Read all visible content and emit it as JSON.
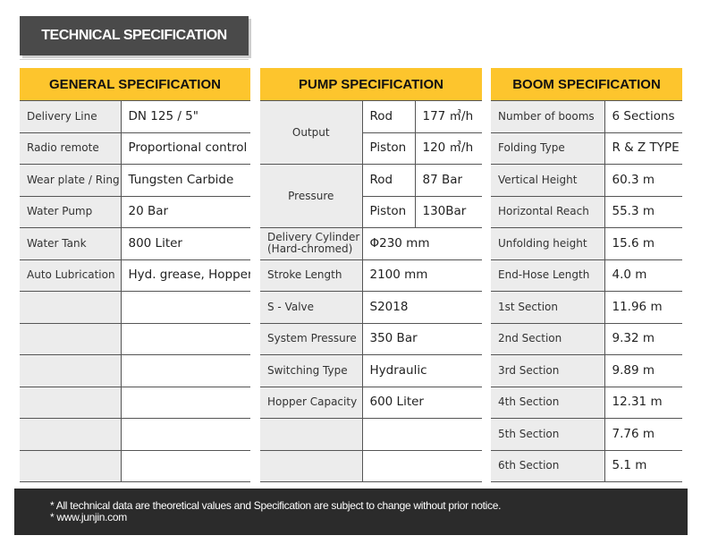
{
  "title": "TECHNICAL SPECIFICATION",
  "general": {
    "header": "GENERAL SPECIFICATION",
    "rows": [
      {
        "label": "Delivery Line",
        "value": "DN 125 / 5\""
      },
      {
        "label": "Radio remote",
        "value": "Proportional control"
      },
      {
        "label": "Wear plate / Ring",
        "value": "Tungsten Carbide"
      },
      {
        "label": "Water Pump",
        "value": "20 Bar"
      },
      {
        "label": "Water Tank",
        "value": "800 Liter"
      },
      {
        "label": "Auto Lubrication",
        "value": "Hyd. grease, Hopper"
      }
    ]
  },
  "pump": {
    "header": "PUMP SPECIFICATION",
    "output_label": "Output",
    "output_rod_label": "Rod",
    "output_rod_value": "177 ㎥/h",
    "output_piston_label": "Piston",
    "output_piston_value": "120 ㎥/h",
    "pressure_label": "Pressure",
    "pressure_rod_label": "Rod",
    "pressure_rod_value": "87 Bar",
    "pressure_piston_label": "Piston",
    "pressure_piston_value": "130Bar",
    "rows": [
      {
        "label": "Delivery Cylinder (Hard-chromed)",
        "value": "Φ230 mm"
      },
      {
        "label": "Stroke Length",
        "value": "2100 mm"
      },
      {
        "label": "S - Valve",
        "value": "S2018"
      },
      {
        "label": "System Pressure",
        "value": "350 Bar"
      },
      {
        "label": "Switching Type",
        "value": "Hydraulic"
      },
      {
        "label": "Hopper Capacity",
        "value": "600 Liter"
      }
    ]
  },
  "boom": {
    "header": "BOOM SPECIFICATION",
    "rows": [
      {
        "label": "Number of booms",
        "value": "6 Sections"
      },
      {
        "label": "Folding Type",
        "value": "R & Z TYPE"
      },
      {
        "label": "Vertical Height",
        "value": "60.3 m"
      },
      {
        "label": "Horizontal Reach",
        "value": "55.3 m"
      },
      {
        "label": "Unfolding height",
        "value": "15.6 m"
      },
      {
        "label": "End-Hose Length",
        "value": "4.0 m"
      },
      {
        "label": "1st Section",
        "value": "11.96 m"
      },
      {
        "label": "2nd Section",
        "value": "9.32 m"
      },
      {
        "label": "3rd Section",
        "value": "9.89 m"
      },
      {
        "label": "4th Section",
        "value": "12.31 m"
      },
      {
        "label": "5th Section",
        "value": "7.76 m"
      },
      {
        "label": "6th Section",
        "value": "5.1 m"
      }
    ]
  },
  "footer": {
    "note": "* All technical data are theoretical values and Specification are subject to change without prior notice.",
    "website": "* www.junjin.com"
  },
  "colors": {
    "header_bg": "#fdc52d",
    "title_bg": "#4a4a4a",
    "label_bg": "#ececec",
    "footer_bg": "#2b2b2b"
  }
}
